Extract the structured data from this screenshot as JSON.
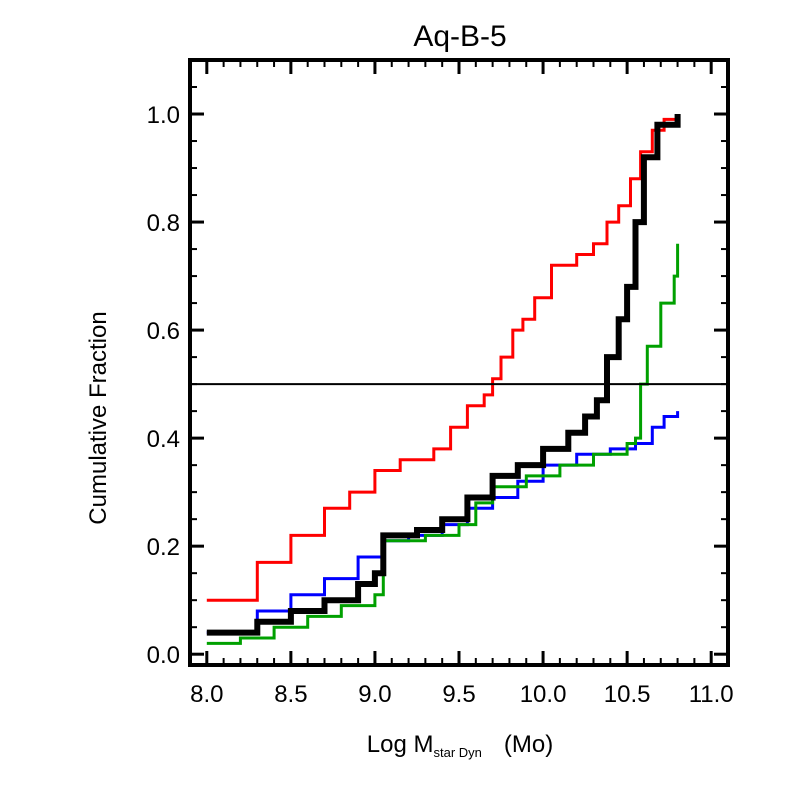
{
  "chart_data": {
    "type": "line",
    "title": "Aq-B-5",
    "xlabel": {
      "main": "Log M",
      "subscript": "star Dyn",
      "unit": "(Mo)"
    },
    "ylabel": "Cumulative Fraction",
    "xlim": [
      7.9,
      11.1
    ],
    "ylim": [
      -0.02,
      1.1
    ],
    "xticks": [
      {
        "v": 8.0,
        "label": "8.0"
      },
      {
        "v": 8.5,
        "label": "8.5"
      },
      {
        "v": 9.0,
        "label": "9.0"
      },
      {
        "v": 9.5,
        "label": "9.5"
      },
      {
        "v": 10.0,
        "label": "10.0"
      },
      {
        "v": 10.5,
        "label": "10.5"
      },
      {
        "v": 11.0,
        "label": "11.0"
      }
    ],
    "yticks": [
      {
        "v": 0.0,
        "label": "0.0"
      },
      {
        "v": 0.2,
        "label": "0.2"
      },
      {
        "v": 0.4,
        "label": "0.4"
      },
      {
        "v": 0.6,
        "label": "0.6"
      },
      {
        "v": 0.8,
        "label": "0.8"
      },
      {
        "v": 1.0,
        "label": "1.0"
      }
    ],
    "hline": 0.5,
    "grid": false,
    "series": [
      {
        "color": "#ff0000",
        "stroke": 3,
        "points": [
          [
            8.0,
            0.1
          ],
          [
            8.3,
            0.17
          ],
          [
            8.5,
            0.22
          ],
          [
            8.7,
            0.27
          ],
          [
            8.85,
            0.3
          ],
          [
            9.0,
            0.34
          ],
          [
            9.15,
            0.36
          ],
          [
            9.35,
            0.38
          ],
          [
            9.45,
            0.42
          ],
          [
            9.55,
            0.46
          ],
          [
            9.65,
            0.48
          ],
          [
            9.7,
            0.51
          ],
          [
            9.75,
            0.55
          ],
          [
            9.82,
            0.6
          ],
          [
            9.88,
            0.62
          ],
          [
            9.95,
            0.66
          ],
          [
            10.05,
            0.72
          ],
          [
            10.2,
            0.74
          ],
          [
            10.3,
            0.76
          ],
          [
            10.38,
            0.8
          ],
          [
            10.45,
            0.83
          ],
          [
            10.52,
            0.88
          ],
          [
            10.58,
            0.93
          ],
          [
            10.65,
            0.97
          ],
          [
            10.72,
            0.99
          ],
          [
            10.8,
            1.0
          ]
        ]
      },
      {
        "color": "#0000ff",
        "stroke": 3,
        "points": [
          [
            8.0,
            0.04
          ],
          [
            8.3,
            0.08
          ],
          [
            8.5,
            0.11
          ],
          [
            8.7,
            0.14
          ],
          [
            8.9,
            0.18
          ],
          [
            9.05,
            0.21
          ],
          [
            9.2,
            0.22
          ],
          [
            9.4,
            0.24
          ],
          [
            9.55,
            0.27
          ],
          [
            9.7,
            0.29
          ],
          [
            9.85,
            0.32
          ],
          [
            10.0,
            0.35
          ],
          [
            10.2,
            0.37
          ],
          [
            10.4,
            0.38
          ],
          [
            10.55,
            0.39
          ],
          [
            10.65,
            0.42
          ],
          [
            10.72,
            0.44
          ],
          [
            10.8,
            0.45
          ]
        ]
      },
      {
        "color": "#00a000",
        "stroke": 3,
        "points": [
          [
            8.0,
            0.02
          ],
          [
            8.2,
            0.03
          ],
          [
            8.4,
            0.05
          ],
          [
            8.6,
            0.07
          ],
          [
            8.8,
            0.09
          ],
          [
            9.0,
            0.11
          ],
          [
            9.05,
            0.21
          ],
          [
            9.3,
            0.22
          ],
          [
            9.5,
            0.24
          ],
          [
            9.6,
            0.28
          ],
          [
            9.7,
            0.31
          ],
          [
            9.9,
            0.33
          ],
          [
            10.1,
            0.35
          ],
          [
            10.3,
            0.37
          ],
          [
            10.5,
            0.39
          ],
          [
            10.55,
            0.4
          ],
          [
            10.58,
            0.5
          ],
          [
            10.62,
            0.57
          ],
          [
            10.7,
            0.65
          ],
          [
            10.78,
            0.7
          ],
          [
            10.8,
            0.76
          ]
        ]
      },
      {
        "color": "#000000",
        "stroke": 6,
        "points": [
          [
            8.0,
            0.04
          ],
          [
            8.3,
            0.06
          ],
          [
            8.5,
            0.08
          ],
          [
            8.7,
            0.1
          ],
          [
            8.9,
            0.13
          ],
          [
            9.0,
            0.15
          ],
          [
            9.05,
            0.22
          ],
          [
            9.25,
            0.23
          ],
          [
            9.4,
            0.25
          ],
          [
            9.55,
            0.29
          ],
          [
            9.7,
            0.33
          ],
          [
            9.85,
            0.35
          ],
          [
            10.0,
            0.38
          ],
          [
            10.15,
            0.41
          ],
          [
            10.25,
            0.44
          ],
          [
            10.32,
            0.47
          ],
          [
            10.38,
            0.55
          ],
          [
            10.45,
            0.62
          ],
          [
            10.5,
            0.68
          ],
          [
            10.55,
            0.8
          ],
          [
            10.6,
            0.92
          ],
          [
            10.68,
            0.98
          ],
          [
            10.8,
            1.0
          ]
        ]
      }
    ]
  }
}
